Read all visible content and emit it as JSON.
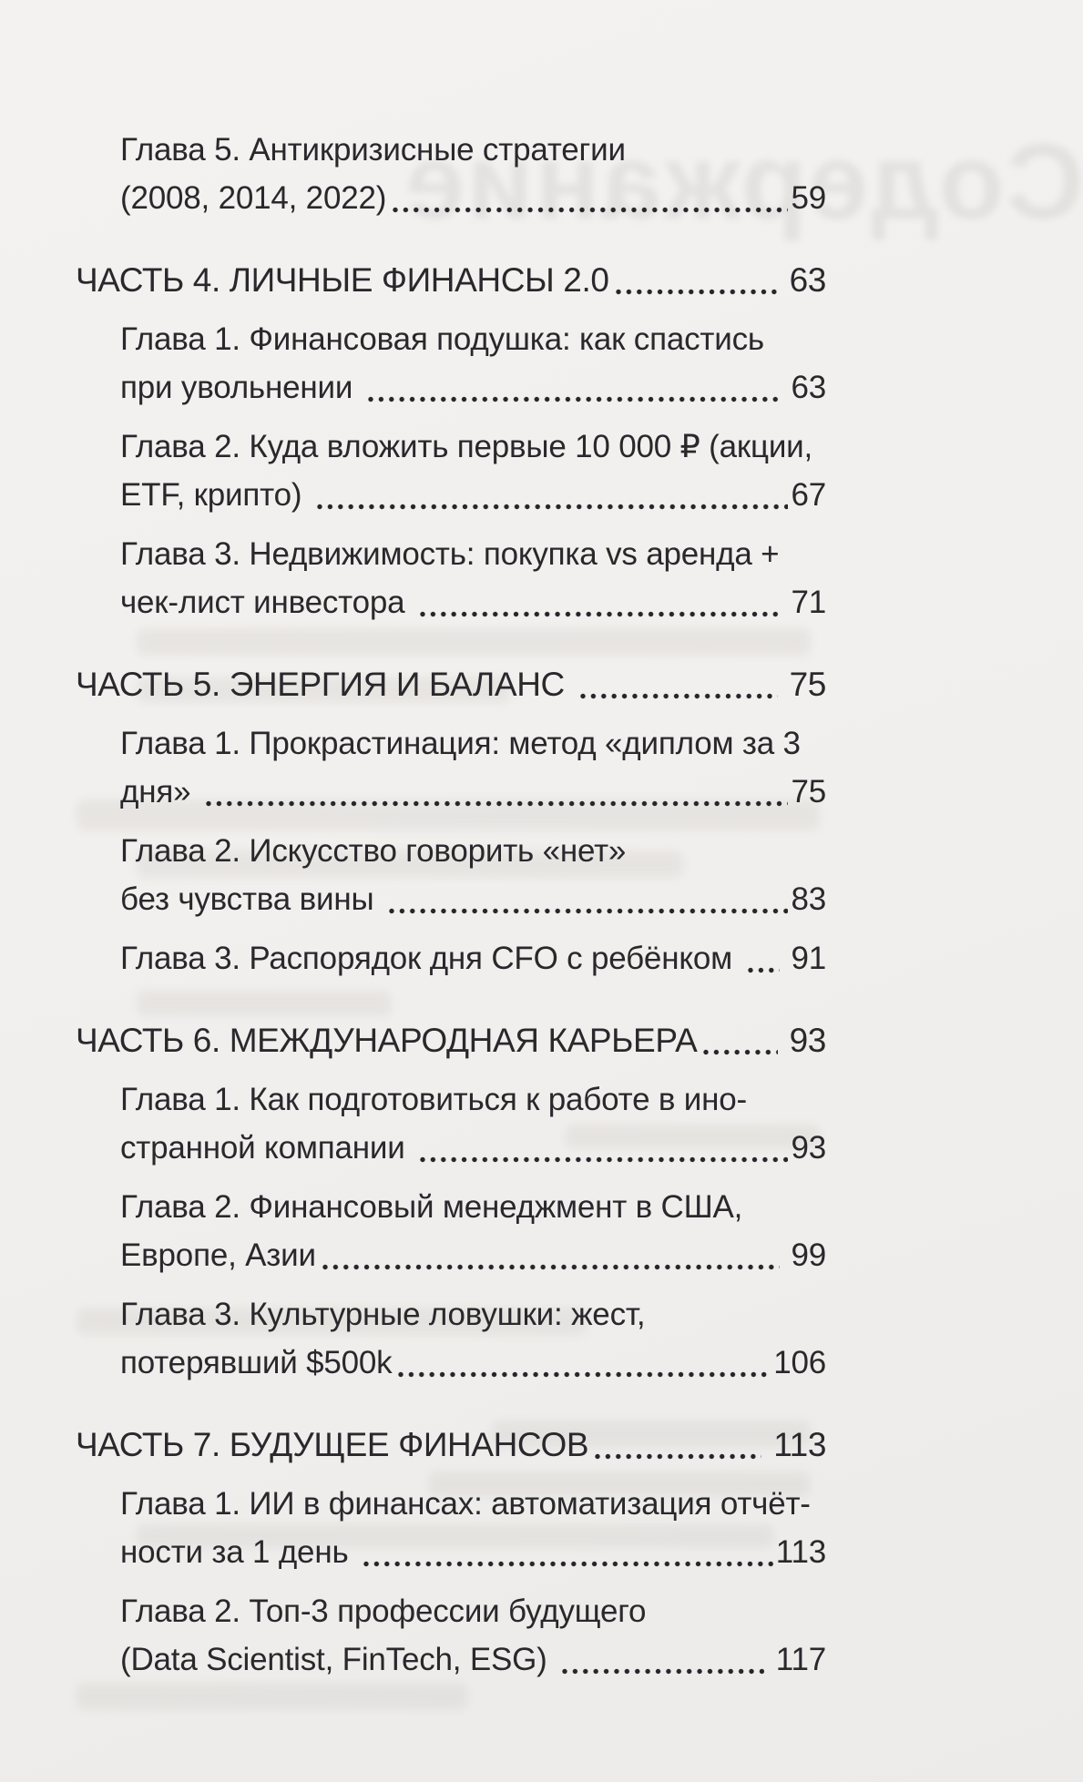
{
  "page": {
    "paper_color": "#f1efed",
    "text_color": "#29282c"
  },
  "bleed_through": {
    "mirrored_title": "Содержание"
  },
  "toc": {
    "entries": [
      {
        "type": "chapter",
        "lines": [
          "Глава 5. Антикризисные стратегии",
          "(2008, 2014, 2022)"
        ],
        "page": "59"
      },
      {
        "type": "part",
        "lines": [
          "ЧАСТЬ 4. ЛИЧНЫЕ ФИНАНСЫ 2.0"
        ],
        "page": " 63"
      },
      {
        "type": "chapter",
        "lines": [
          "Глава 1. Финансовая подушка: как спастись",
          "при увольнении "
        ],
        "page": " 63"
      },
      {
        "type": "chapter",
        "lines": [
          "Глава 2. Куда вложить первые 10 000 ₽ (акции,",
          "ETF, крипто) "
        ],
        "page": "67"
      },
      {
        "type": "chapter",
        "lines": [
          "Глава 3. Недвижимость: покупка vs аренда +",
          "чек-лист инвестора "
        ],
        "page": " 71"
      },
      {
        "type": "part",
        "lines": [
          "ЧАСТЬ 5. ЭНЕРГИЯ И БАЛАНС "
        ],
        "page": " 75"
      },
      {
        "type": "chapter",
        "lines": [
          "Глава 1. Прокрастинация: метод «диплом за 3",
          "дня» "
        ],
        "page": "75"
      },
      {
        "type": "chapter",
        "lines": [
          "Глава 2. Искусство говорить «нет»",
          "без чувства вины "
        ],
        "page": "83"
      },
      {
        "type": "chapter",
        "lines": [
          "Глава 3. Распорядок дня CFO с ребёнком "
        ],
        "page": " 91"
      },
      {
        "type": "part",
        "lines": [
          "ЧАСТЬ 6. МЕЖДУНАРОДНАЯ КАРЬЕРА"
        ],
        "page": " 93"
      },
      {
        "type": "chapter",
        "lines": [
          "Глава 1. Как подготовиться к работе в ино-",
          "странной компании "
        ],
        "page": "93"
      },
      {
        "type": "chapter",
        "lines": [
          "Глава 2. Финансовый менеджмент в США,",
          "Европе, Азии"
        ],
        "page": " 99"
      },
      {
        "type": "chapter",
        "lines": [
          "Глава 3. Культурные ловушки: жест,",
          "потерявший $500k"
        ],
        "page": "106"
      },
      {
        "type": "part",
        "lines": [
          "ЧАСТЬ 7. БУДУЩЕЕ ФИНАНСОВ"
        ],
        "page": " 113"
      },
      {
        "type": "chapter",
        "lines": [
          "Глава 1. ИИ в финансах: автоматизация отчёт-",
          "ности за 1 день "
        ],
        "page": "113"
      },
      {
        "type": "chapter",
        "lines": [
          "Глава 2. Топ-3 профессии будущего",
          "(Data Scientist, FinTech, ESG) "
        ],
        "page": " 117"
      }
    ]
  }
}
